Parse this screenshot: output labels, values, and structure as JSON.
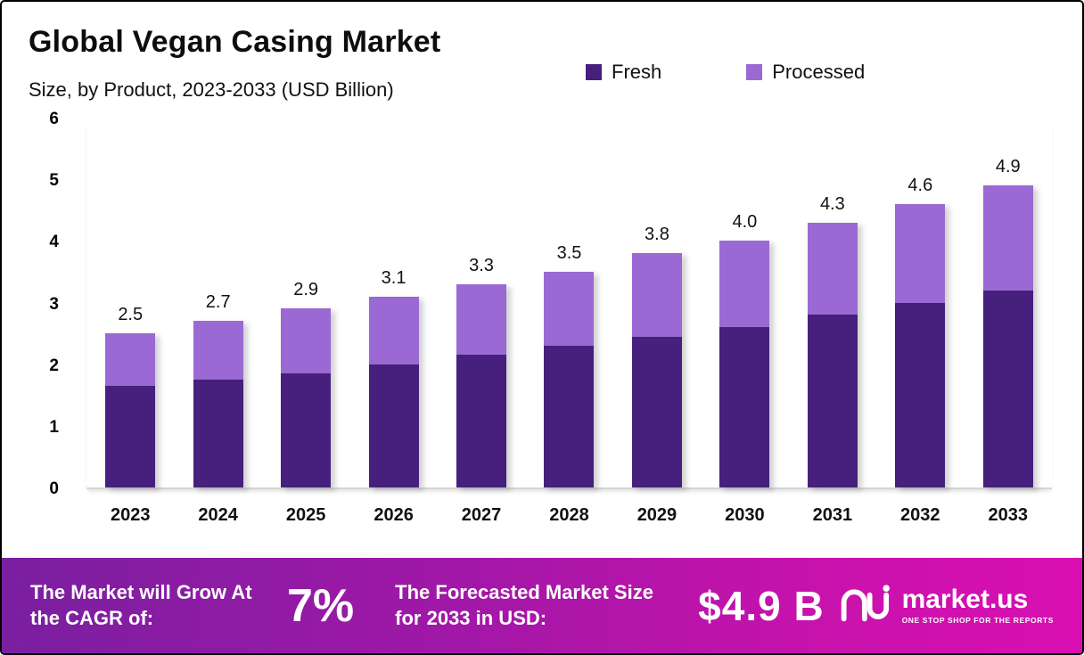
{
  "header": {
    "title": "Global Vegan Casing Market",
    "subtitle": "Size, by Product, 2023-2033 (USD Billion)"
  },
  "chart_data": {
    "type": "bar",
    "stacked": true,
    "title": "Global Vegan Casing Market Size, by Product, 2023-2033 (USD Billion)",
    "categories": [
      "2023",
      "2024",
      "2025",
      "2026",
      "2027",
      "2028",
      "2029",
      "2030",
      "2031",
      "2032",
      "2033"
    ],
    "series": [
      {
        "name": "Fresh",
        "color": "#46207c",
        "values": [
          1.65,
          1.75,
          1.85,
          2.0,
          2.15,
          2.3,
          2.45,
          2.6,
          2.8,
          3.0,
          3.2
        ]
      },
      {
        "name": "Processed",
        "color": "#9b69d4",
        "values": [
          0.85,
          0.95,
          1.05,
          1.1,
          1.15,
          1.2,
          1.35,
          1.4,
          1.5,
          1.6,
          1.7
        ]
      }
    ],
    "totals": [
      "2.5",
      "2.7",
      "2.9",
      "3.1",
      "3.3",
      "3.5",
      "3.8",
      "4.0",
      "4.3",
      "4.6",
      "4.9"
    ],
    "ylim": [
      0,
      6
    ],
    "yticks": [
      0,
      1,
      2,
      3,
      4,
      5,
      6
    ],
    "legend_position": "top",
    "grid": false
  },
  "footer": {
    "growth_label": "The Market will Grow At the CAGR of:",
    "cagr_value": "7%",
    "forecast_label": "The Forecasted Market Size for 2033 in USD:",
    "forecast_value": "$4.9 B",
    "brand_name": "market.us",
    "brand_tagline": "ONE STOP SHOP FOR THE REPORTS"
  }
}
